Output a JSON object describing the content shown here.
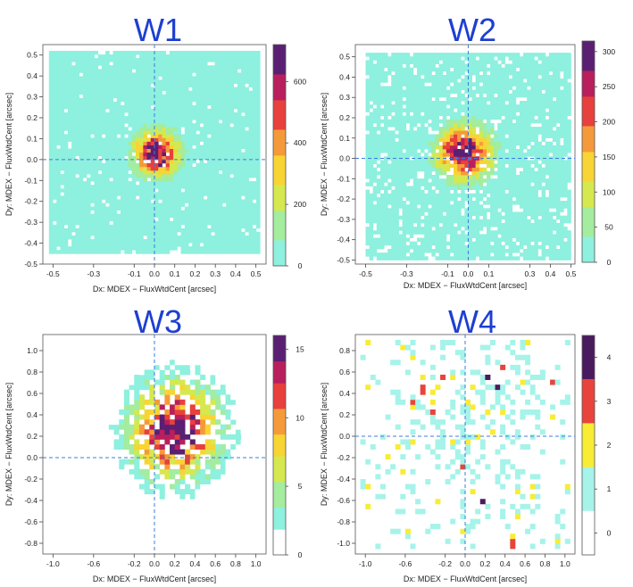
{
  "panels": [
    {
      "title": "W1",
      "xlabel": "Dx: MDEX − FluxWtdCent [arcsec]",
      "ylabel": "Dy: MDEX − FluxWtdCent [arcsec]",
      "x_ticks": [
        "-0.5",
        "-0.3",
        "-0.1",
        "0.0",
        "0.1",
        "0.2",
        "0.3",
        "0.4",
        "0.5"
      ],
      "y_ticks": [
        "-0.5",
        "-0.4",
        "-0.3",
        "-0.2",
        "-0.1",
        "0.0",
        "0.1",
        "0.2",
        "0.3",
        "0.4",
        "0.5"
      ],
      "colorbar_ticks": [
        "0",
        "200",
        "400",
        "600"
      ]
    },
    {
      "title": "W2",
      "xlabel": "Dx: MDEX − FluxWtdCent [arcsec]",
      "ylabel": "Dy: MDEX − FluxWtdCent [arcsec]",
      "x_ticks": [
        "-0.5",
        "-0.3",
        "-0.1",
        "0.0",
        "0.1",
        "0.3",
        "0.4",
        "0.5"
      ],
      "y_ticks": [
        "-0.5",
        "-0.4",
        "-0.3",
        "-0.2",
        "-0.1",
        "0.0",
        "0.1",
        "0.2",
        "0.3",
        "0.4",
        "0.5"
      ],
      "colorbar_ticks": [
        "0",
        "50",
        "100",
        "150",
        "200",
        "250",
        "300"
      ]
    },
    {
      "title": "W3",
      "xlabel": "Dx: MDEX − FluxWtdCent [arcsec]",
      "ylabel": "Dy: MDEX − FluxWtdCent [arcsec]",
      "x_ticks": [
        "-1.0",
        "-0.6",
        "-0.2",
        "0.0",
        "0.2",
        "0.4",
        "0.6",
        "0.8",
        "1.0"
      ],
      "y_ticks": [
        "-0.8",
        "-0.6",
        "-0.4",
        "-0.2",
        "0.0",
        "0.2",
        "0.4",
        "0.6",
        "0.8",
        "1.0"
      ],
      "colorbar_ticks": [
        "0",
        "5",
        "10",
        "15"
      ]
    },
    {
      "title": "W4",
      "xlabel": "Dx: MDEX − FluxWtdCent [arcsec]",
      "ylabel": "Dy: MDEX − FluxWtdCent [arcsec]",
      "x_ticks": [
        "-1.0",
        "-0.6",
        "-0.2",
        "0.0",
        "0.2",
        "0.4",
        "0.6",
        "0.8",
        "1.0"
      ],
      "y_ticks": [
        "-1.0",
        "-0.8",
        "-0.6",
        "-0.4",
        "-0.2",
        "0.0",
        "0.2",
        "0.4",
        "0.6",
        "0.8"
      ],
      "colorbar_ticks": [
        "0",
        "1",
        "2",
        "3",
        "4"
      ]
    }
  ],
  "chart_data": [
    {
      "type": "heatmap",
      "title": "W1",
      "xlabel": "Dx: MDEX − FluxWtdCent [arcsec]",
      "ylabel": "Dy: MDEX − FluxWtdCent [arcsec]",
      "xlim": [
        -0.55,
        0.55
      ],
      "ylim": [
        -0.5,
        0.55
      ],
      "x_ticks": [
        -0.5,
        -0.3,
        -0.1,
        0.0,
        0.1,
        0.2,
        0.3,
        0.4,
        0.5
      ],
      "y_ticks": [
        -0.5,
        -0.4,
        -0.3,
        -0.2,
        -0.1,
        0.0,
        0.1,
        0.2,
        0.3,
        0.4,
        0.5
      ],
      "data_range": [
        -0.52,
        0.52,
        -0.45,
        0.52
      ],
      "center": [
        0.01,
        0.03
      ],
      "sigma": 0.07,
      "peak": 720,
      "noise": 0.04,
      "cmax": 720,
      "colorbar_ticks": [
        0,
        200,
        400,
        600
      ],
      "bins": 56,
      "reference_lines": {
        "x": 0.0,
        "y": 0.0
      },
      "colormap": [
        "#8ef0de",
        "#a4ec9e",
        "#d6e84f",
        "#f8d434",
        "#f59a3a",
        "#e8403c",
        "#b81f5c",
        "#5a1f73"
      ],
      "grid": false
    },
    {
      "type": "heatmap",
      "title": "W2",
      "xlabel": "Dx: MDEX − FluxWtdCent [arcsec]",
      "ylabel": "Dy: MDEX − FluxWtdCent [arcsec]",
      "xlim": [
        -0.55,
        0.52
      ],
      "ylim": [
        -0.52,
        0.56
      ],
      "x_ticks": [
        -0.5,
        -0.3,
        -0.1,
        0.0,
        0.1,
        0.3,
        0.4,
        0.5
      ],
      "y_ticks": [
        -0.5,
        -0.4,
        -0.3,
        -0.2,
        -0.1,
        0.0,
        0.1,
        0.2,
        0.3,
        0.4,
        0.5
      ],
      "data_range": [
        -0.5,
        0.5,
        -0.5,
        0.52
      ],
      "center": [
        -0.02,
        0.03
      ],
      "sigma": 0.085,
      "peak": 310,
      "noise": 0.12,
      "cmax": 315,
      "colorbar_ticks": [
        0,
        50,
        100,
        150,
        200,
        250,
        300
      ],
      "bins": 56,
      "reference_lines": {
        "x": 0.0,
        "y": 0.0
      },
      "colormap": [
        "#8ef0de",
        "#a4ec9e",
        "#d6e84f",
        "#f8d434",
        "#f59a3a",
        "#e8403c",
        "#b81f5c",
        "#5a1f73"
      ],
      "grid": false
    },
    {
      "type": "heatmap",
      "title": "W3",
      "xlabel": "Dx: MDEX − FluxWtdCent [arcsec]",
      "ylabel": "Dy: MDEX − FluxWtdCent [arcsec]",
      "xlim": [
        -1.1,
        1.1
      ],
      "ylim": [
        -0.9,
        1.15
      ],
      "x_ticks": [
        -1.0,
        -0.6,
        -0.2,
        0.0,
        0.2,
        0.4,
        0.6,
        0.8,
        1.0
      ],
      "y_ticks": [
        -0.8,
        -0.6,
        -0.4,
        -0.2,
        0.0,
        0.2,
        0.4,
        0.6,
        0.8,
        1.0
      ],
      "data_range": [
        -1.05,
        1.05,
        -0.85,
        1.1
      ],
      "center": [
        0.2,
        0.25
      ],
      "sigma": 0.3,
      "peak": 15,
      "noise": 0.3,
      "cmax": 16,
      "colorbar_ticks": [
        0,
        5,
        10,
        15
      ],
      "bins": 42,
      "reference_lines": {
        "x": 0.0,
        "y": 0.0
      },
      "colormap": [
        "#ffffff",
        "#8ef0de",
        "#a4ec9e",
        "#d6e84f",
        "#f8d434",
        "#f59a3a",
        "#e8403c",
        "#b81f5c",
        "#5a1f73"
      ],
      "grid": false
    },
    {
      "type": "heatmap",
      "title": "W4",
      "xlabel": "Dx: MDEX − FluxWtdCent [arcsec]",
      "ylabel": "Dy: MDEX − FluxWtdCent [arcsec]",
      "xlim": [
        -1.1,
        1.1
      ],
      "ylim": [
        -1.1,
        0.95
      ],
      "x_ticks": [
        -1.0,
        -0.6,
        -0.2,
        0.0,
        0.2,
        0.4,
        0.6,
        0.8,
        1.0
      ],
      "y_ticks": [
        -1.0,
        -0.8,
        -0.6,
        -0.4,
        -0.2,
        0.0,
        0.2,
        0.4,
        0.6,
        0.8
      ],
      "data_range": [
        -1.05,
        1.05,
        -1.05,
        0.9
      ],
      "center": [
        0.1,
        0.1
      ],
      "sigma": 0.5,
      "peak": 1.5,
      "noise": 0.35,
      "cmax": 4.5,
      "colorbar_ticks": [
        0,
        1,
        2,
        3,
        4
      ],
      "bins": 42,
      "sparse": true,
      "reference_lines": {
        "x": 0.0,
        "y": 0.0
      },
      "colormap": [
        "#ffffff",
        "#a6f3e9",
        "#f8ec35",
        "#e8443c",
        "#4a1a5e"
      ],
      "grid": false
    }
  ]
}
